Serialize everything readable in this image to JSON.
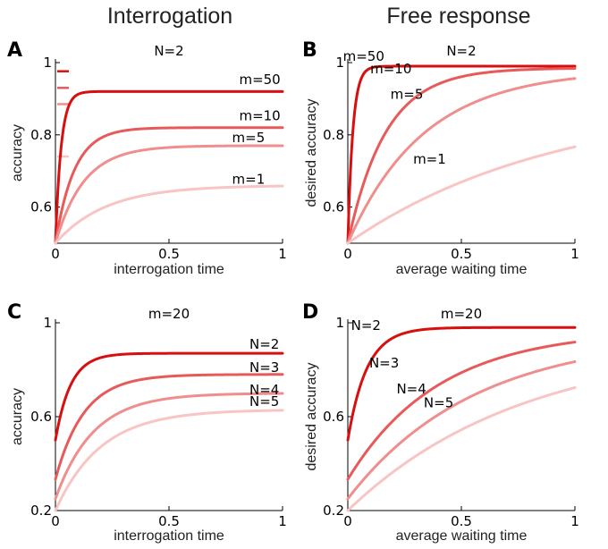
{
  "column_titles": [
    "Interrogation",
    "Free response"
  ],
  "colors": {
    "level1": "#d80f0f",
    "level2": "#e85a5a",
    "level3": "#f08d8d",
    "level4": "#f8c4c4"
  },
  "chart_data": [
    {
      "letter": "A",
      "type": "line",
      "title": "N=2",
      "xlabel": "interrogation time",
      "ylabel": "accuracy",
      "xlim": [
        0,
        1
      ],
      "ylim": [
        0.5,
        1
      ],
      "xticks": [
        0,
        0.5,
        1
      ],
      "xtick_labels": [
        "0",
        "0.5",
        "1"
      ],
      "yticks": [
        0.6,
        0.8,
        1
      ],
      "ytick_labels": [
        "0.6",
        "0.8",
        "1"
      ],
      "series": [
        {
          "name": "m=50",
          "asymptote": 0.92,
          "rate": 40,
          "color": "level1",
          "label_x": 0.9,
          "label_y": 0.94
        },
        {
          "name": "m=10",
          "asymptote": 0.82,
          "rate": 12,
          "color": "level2",
          "label_x": 0.9,
          "label_y": 0.84
        },
        {
          "name": "m=5",
          "asymptote": 0.77,
          "rate": 8,
          "color": "level3",
          "label_x": 0.85,
          "label_y": 0.78
        },
        {
          "name": "m=1",
          "asymptote": 0.66,
          "rate": 4.5,
          "color": "level4",
          "label_x": 0.85,
          "label_y": 0.665
        }
      ],
      "reference_marks": [
        {
          "y": 0.976,
          "color": "level1"
        },
        {
          "y": 0.93,
          "color": "level2"
        },
        {
          "y": 0.885,
          "color": "level3"
        },
        {
          "y": 0.74,
          "color": "level4"
        }
      ]
    },
    {
      "letter": "B",
      "type": "line",
      "title": "N=2",
      "xlabel": "average waiting time",
      "ylabel": "desired accuracy",
      "xlim": [
        0,
        1
      ],
      "ylim": [
        0.5,
        1
      ],
      "xticks": [
        0,
        0.5,
        1
      ],
      "xtick_labels": [
        "0",
        "0.5",
        "1"
      ],
      "yticks": [
        0.6,
        0.8,
        1
      ],
      "ytick_labels": [
        "0.6",
        "0.8",
        "1"
      ],
      "series": [
        {
          "name": "m=50",
          "asymptote": 0.99,
          "rate": 45,
          "color": "level1",
          "label_x": 0.07,
          "label_y": 1.005
        },
        {
          "name": "m=10",
          "asymptote": 0.985,
          "rate": 6,
          "color": "level2",
          "label_x": 0.19,
          "label_y": 0.97
        },
        {
          "name": "m=5",
          "asymptote": 0.98,
          "rate": 3,
          "color": "level3",
          "label_x": 0.26,
          "label_y": 0.9
        },
        {
          "name": "m=1",
          "asymptote": 0.9,
          "rate": 1.1,
          "color": "level4",
          "label_x": 0.36,
          "label_y": 0.72
        }
      ]
    },
    {
      "letter": "C",
      "type": "line",
      "title": "m=20",
      "xlabel": "interrogation time",
      "ylabel": "accuracy",
      "xlim": [
        0,
        1
      ],
      "ylim": [
        0.2,
        1
      ],
      "xticks": [
        0,
        0.5,
        1
      ],
      "xtick_labels": [
        "0",
        "0.5",
        "1"
      ],
      "yticks": [
        0.2,
        0.6,
        1
      ],
      "ytick_labels": [
        "0.2",
        "0.6",
        "1"
      ],
      "series": [
        {
          "name": "N=2",
          "start": 0.5,
          "asymptote": 0.87,
          "rate": 15,
          "color": "level1",
          "label_x": 0.92,
          "label_y": 0.89
        },
        {
          "name": "N=3",
          "start": 0.333,
          "asymptote": 0.78,
          "rate": 8,
          "color": "level2",
          "label_x": 0.92,
          "label_y": 0.79
        },
        {
          "name": "N=4",
          "start": 0.25,
          "asymptote": 0.7,
          "rate": 6,
          "color": "level3",
          "label_x": 0.92,
          "label_y": 0.695
        },
        {
          "name": "N=5",
          "start": 0.2,
          "asymptote": 0.63,
          "rate": 5,
          "color": "level4",
          "label_x": 0.92,
          "label_y": 0.645
        }
      ]
    },
    {
      "letter": "D",
      "type": "line",
      "title": "m=20",
      "xlabel": "average waiting time",
      "ylabel": "desired accuracy",
      "xlim": [
        0,
        1
      ],
      "ylim": [
        0.2,
        1
      ],
      "xticks": [
        0,
        0.5,
        1
      ],
      "xtick_labels": [
        "0",
        "0.5",
        "1"
      ],
      "yticks": [
        0.2,
        0.6,
        1
      ],
      "ytick_labels": [
        "0.2",
        "0.6",
        "1"
      ],
      "series": [
        {
          "name": "N=2",
          "start": 0.5,
          "asymptote": 0.98,
          "rate": 12,
          "color": "level1",
          "label_x": 0.08,
          "label_y": 0.97
        },
        {
          "name": "N=3",
          "start": 0.333,
          "asymptote": 0.97,
          "rate": 2.5,
          "color": "level2",
          "label_x": 0.16,
          "label_y": 0.81
        },
        {
          "name": "N=4",
          "start": 0.25,
          "asymptote": 0.95,
          "rate": 1.8,
          "color": "level3",
          "label_x": 0.28,
          "label_y": 0.7
        },
        {
          "name": "N=5",
          "start": 0.2,
          "asymptote": 0.92,
          "rate": 1.3,
          "color": "level4",
          "label_x": 0.4,
          "label_y": 0.64
        }
      ]
    }
  ]
}
